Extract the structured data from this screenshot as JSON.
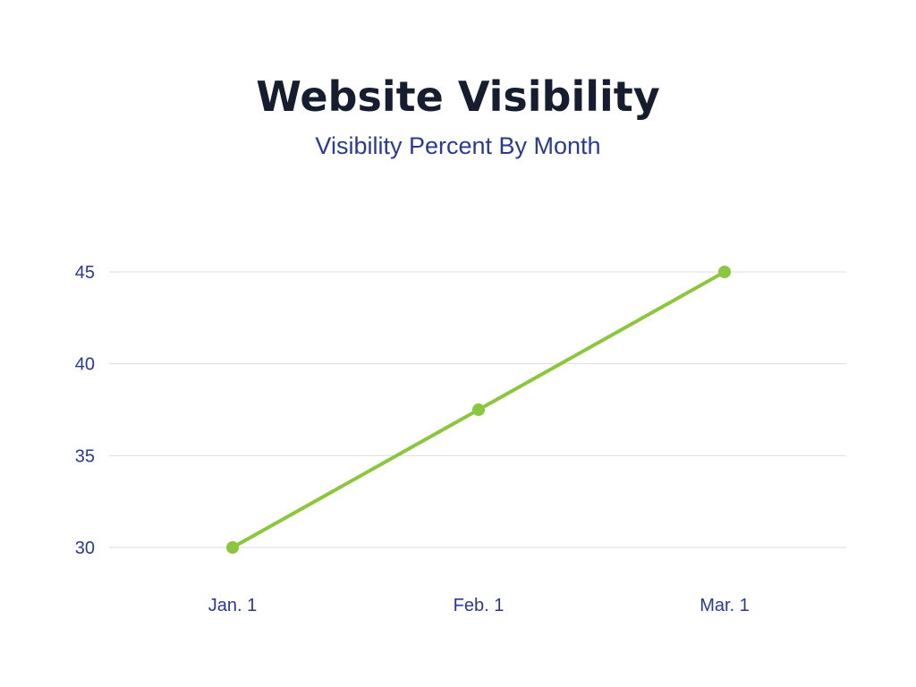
{
  "chart_data": {
    "type": "line",
    "title": "Website Visibility",
    "subtitle": "Visibility Percent By Month",
    "xlabel": "",
    "ylabel": "",
    "categories": [
      "Jan. 1",
      "Feb. 1",
      "Mar. 1"
    ],
    "series": [
      {
        "values": [
          30,
          37.5,
          45
        ],
        "color": "#8cc63f"
      }
    ],
    "yticks": [
      30,
      35,
      40,
      45
    ],
    "ylim": [
      30,
      45
    ],
    "grid": true,
    "legend": "none"
  }
}
